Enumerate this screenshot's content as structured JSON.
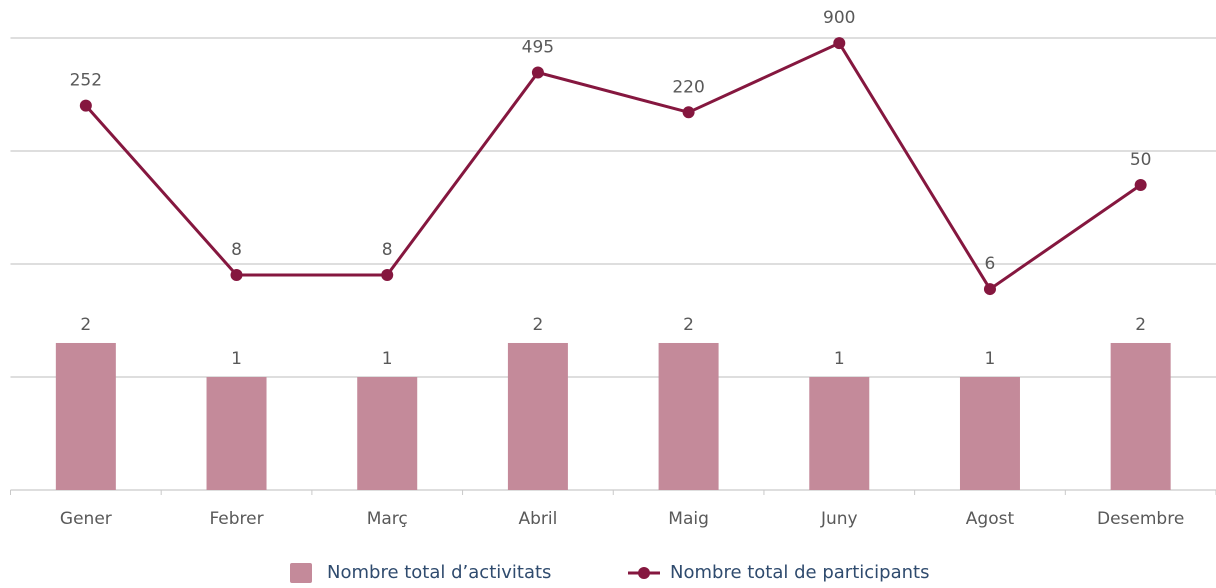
{
  "chart_data": {
    "type": "combo",
    "categories": [
      "Gener",
      "Febrer",
      "Març",
      "Abril",
      "Maig",
      "Juny",
      "Agost",
      "Desembre"
    ],
    "series": [
      {
        "name": "Nombre total d’activitats",
        "type": "bar",
        "color": "#c48a9a",
        "values": [
          2,
          1,
          1,
          2,
          2,
          1,
          1,
          2
        ]
      },
      {
        "name": "Nombre total de participants",
        "type": "line",
        "color": "#85173f",
        "values": [
          252,
          8,
          8,
          495,
          220,
          900,
          6,
          50
        ]
      }
    ],
    "ylim": [
      0.1,
      1000
    ],
    "yticks": [
      0.1,
      1,
      10,
      100,
      1000
    ],
    "log_scale": true,
    "grid": true,
    "legend": "bottom"
  }
}
